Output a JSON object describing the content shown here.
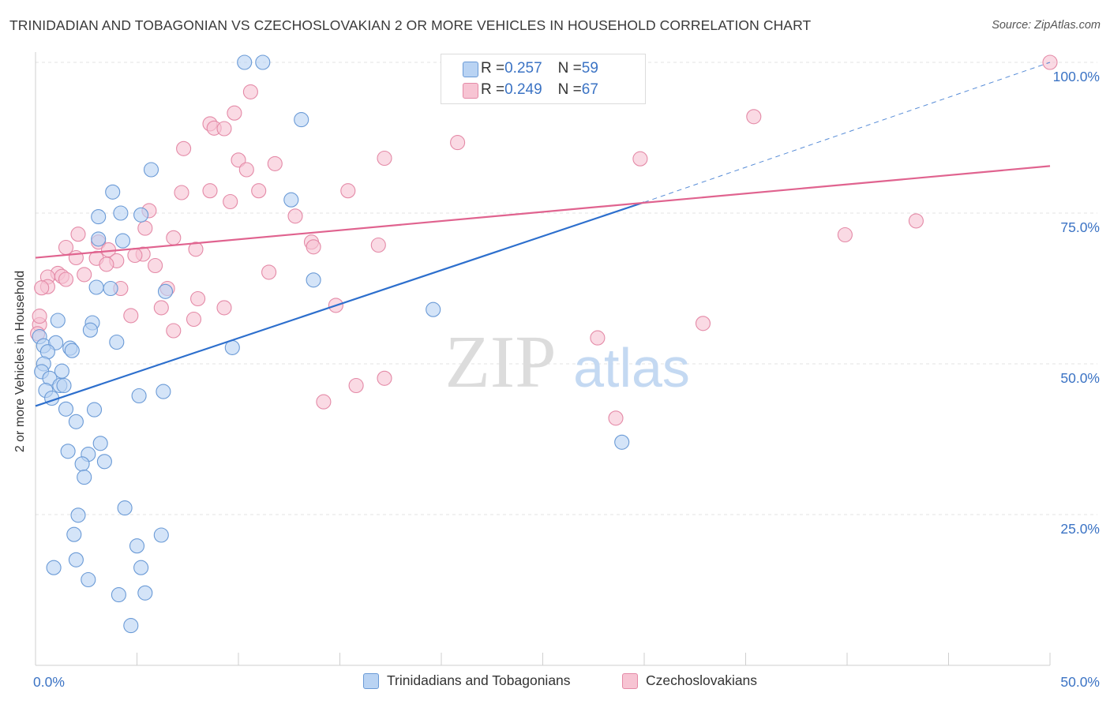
{
  "title": "TRINIDADIAN AND TOBAGONIAN VS CZECHOSLOVAKIAN 2 OR MORE VEHICLES IN HOUSEHOLD CORRELATION CHART",
  "source": "Source: ZipAtlas.com",
  "watermark": {
    "zip": "ZIP",
    "atlas": "atlas"
  },
  "colors": {
    "blue_fill": "#b9d3f3",
    "blue_stroke": "#6a9ad6",
    "blue_line": "#2d6fcd",
    "pink_fill": "#f7c4d3",
    "pink_stroke": "#e48aa7",
    "pink_line": "#e0638f",
    "tick_label": "#3b73c4",
    "grid": "#e3e3e3"
  },
  "stats": [
    {
      "r_label": "R = ",
      "r_value": "0.257",
      "n_label": "N = ",
      "n_value": "59"
    },
    {
      "r_label": "R = ",
      "r_value": "0.249",
      "n_label": "N = ",
      "n_value": "67"
    }
  ],
  "chart_data": {
    "type": "scatter",
    "title": "TRINIDADIAN AND TOBAGONIAN VS CZECHOSLOVAKIAN 2 OR MORE VEHICLES IN HOUSEHOLD CORRELATION CHART",
    "xlabel": "",
    "ylabel": "2 or more Vehicles in Household",
    "xlim": [
      0,
      50
    ],
    "ylim": [
      0,
      100
    ],
    "x_tick_labels": [
      "0.0%",
      "50.0%"
    ],
    "y_ticks": [
      25,
      50,
      75,
      100
    ],
    "y_tick_labels": [
      "25.0%",
      "50.0%",
      "75.0%",
      "100.0%"
    ],
    "grid": true,
    "legend_position": "bottom-center",
    "series": [
      {
        "name": "Trinidadians and Tobagonians",
        "color": "#b9d3f3",
        "r": 0.257,
        "n": 59,
        "trend": {
          "x": [
            0,
            30
          ],
          "y": [
            43.0,
            76.8
          ],
          "dashed_extension": {
            "x": [
              30,
              50
            ],
            "y": [
              76.8,
              100.0
            ]
          }
        },
        "points": [
          [
            10.3,
            100.0
          ],
          [
            11.2,
            100.0
          ],
          [
            13.1,
            90.5
          ],
          [
            5.7,
            82.2
          ],
          [
            3.8,
            78.5
          ],
          [
            12.6,
            77.2
          ],
          [
            3.1,
            74.4
          ],
          [
            4.2,
            75.0
          ],
          [
            5.2,
            74.7
          ],
          [
            3.1,
            70.7
          ],
          [
            4.3,
            70.4
          ],
          [
            13.7,
            63.9
          ],
          [
            3.0,
            62.7
          ],
          [
            3.7,
            62.5
          ],
          [
            6.4,
            62.0
          ],
          [
            19.6,
            59.0
          ],
          [
            1.1,
            57.2
          ],
          [
            2.8,
            56.8
          ],
          [
            2.7,
            55.6
          ],
          [
            0.2,
            54.5
          ],
          [
            0.4,
            53.0
          ],
          [
            1.0,
            53.5
          ],
          [
            4.0,
            53.6
          ],
          [
            1.7,
            52.6
          ],
          [
            1.8,
            52.2
          ],
          [
            0.6,
            52.0
          ],
          [
            9.7,
            52.7
          ],
          [
            0.4,
            50.0
          ],
          [
            0.3,
            48.7
          ],
          [
            1.3,
            48.8
          ],
          [
            0.7,
            47.6
          ],
          [
            1.2,
            46.4
          ],
          [
            1.4,
            46.4
          ],
          [
            0.5,
            45.6
          ],
          [
            6.3,
            45.4
          ],
          [
            5.1,
            44.7
          ],
          [
            0.8,
            44.3
          ],
          [
            1.5,
            42.5
          ],
          [
            2.9,
            42.4
          ],
          [
            2.0,
            40.4
          ],
          [
            3.2,
            36.8
          ],
          [
            28.9,
            37.0
          ],
          [
            1.6,
            35.5
          ],
          [
            2.6,
            35.0
          ],
          [
            3.4,
            33.8
          ],
          [
            2.3,
            33.4
          ],
          [
            2.4,
            31.2
          ],
          [
            4.4,
            26.1
          ],
          [
            2.1,
            24.9
          ],
          [
            1.9,
            21.7
          ],
          [
            6.2,
            21.6
          ],
          [
            5.0,
            19.8
          ],
          [
            2.0,
            17.5
          ],
          [
            0.9,
            16.2
          ],
          [
            5.2,
            16.2
          ],
          [
            2.6,
            14.2
          ],
          [
            4.1,
            11.7
          ],
          [
            5.4,
            12.0
          ],
          [
            4.7,
            6.6
          ]
        ]
      },
      {
        "name": "Czechoslovakians",
        "color": "#f7c4d3",
        "r": 0.249,
        "n": 67,
        "trend": {
          "x": [
            0,
            50
          ],
          "y": [
            67.6,
            82.8
          ]
        },
        "points": [
          [
            23.9,
            100.0
          ],
          [
            50.0,
            100.0
          ],
          [
            10.6,
            95.1
          ],
          [
            9.8,
            91.6
          ],
          [
            35.4,
            91.0
          ],
          [
            8.6,
            89.8
          ],
          [
            8.8,
            89.1
          ],
          [
            9.3,
            89.0
          ],
          [
            20.8,
            86.7
          ],
          [
            7.3,
            85.7
          ],
          [
            17.2,
            84.1
          ],
          [
            29.8,
            84.0
          ],
          [
            10.0,
            83.8
          ],
          [
            11.8,
            83.2
          ],
          [
            10.4,
            82.2
          ],
          [
            8.6,
            78.7
          ],
          [
            15.4,
            78.7
          ],
          [
            11.0,
            78.7
          ],
          [
            7.2,
            78.4
          ],
          [
            9.6,
            76.9
          ],
          [
            5.6,
            75.4
          ],
          [
            12.8,
            74.5
          ],
          [
            43.4,
            73.7
          ],
          [
            5.4,
            72.5
          ],
          [
            2.1,
            71.5
          ],
          [
            39.9,
            71.4
          ],
          [
            6.8,
            70.9
          ],
          [
            13.6,
            70.2
          ],
          [
            3.1,
            70.2
          ],
          [
            16.9,
            69.7
          ],
          [
            13.7,
            69.4
          ],
          [
            1.5,
            69.3
          ],
          [
            7.9,
            69.0
          ],
          [
            3.6,
            68.9
          ],
          [
            5.3,
            68.2
          ],
          [
            4.9,
            68.0
          ],
          [
            2.0,
            67.6
          ],
          [
            3.0,
            67.5
          ],
          [
            4.0,
            67.1
          ],
          [
            3.5,
            66.5
          ],
          [
            5.9,
            66.3
          ],
          [
            11.5,
            65.2
          ],
          [
            2.4,
            64.8
          ],
          [
            1.1,
            65.0
          ],
          [
            1.3,
            64.5
          ],
          [
            0.6,
            64.4
          ],
          [
            1.5,
            64.0
          ],
          [
            0.6,
            62.8
          ],
          [
            4.2,
            62.5
          ],
          [
            6.5,
            62.5
          ],
          [
            0.3,
            62.6
          ],
          [
            8.0,
            60.8
          ],
          [
            14.8,
            59.7
          ],
          [
            9.3,
            59.3
          ],
          [
            6.2,
            59.3
          ],
          [
            4.7,
            58.0
          ],
          [
            7.8,
            57.4
          ],
          [
            32.9,
            56.7
          ],
          [
            0.2,
            56.5
          ],
          [
            6.8,
            55.5
          ],
          [
            27.7,
            54.3
          ],
          [
            17.2,
            47.6
          ],
          [
            15.8,
            46.4
          ],
          [
            14.2,
            43.7
          ],
          [
            28.6,
            41.0
          ],
          [
            0.1,
            55.0
          ],
          [
            0.2,
            57.9
          ]
        ]
      }
    ]
  }
}
